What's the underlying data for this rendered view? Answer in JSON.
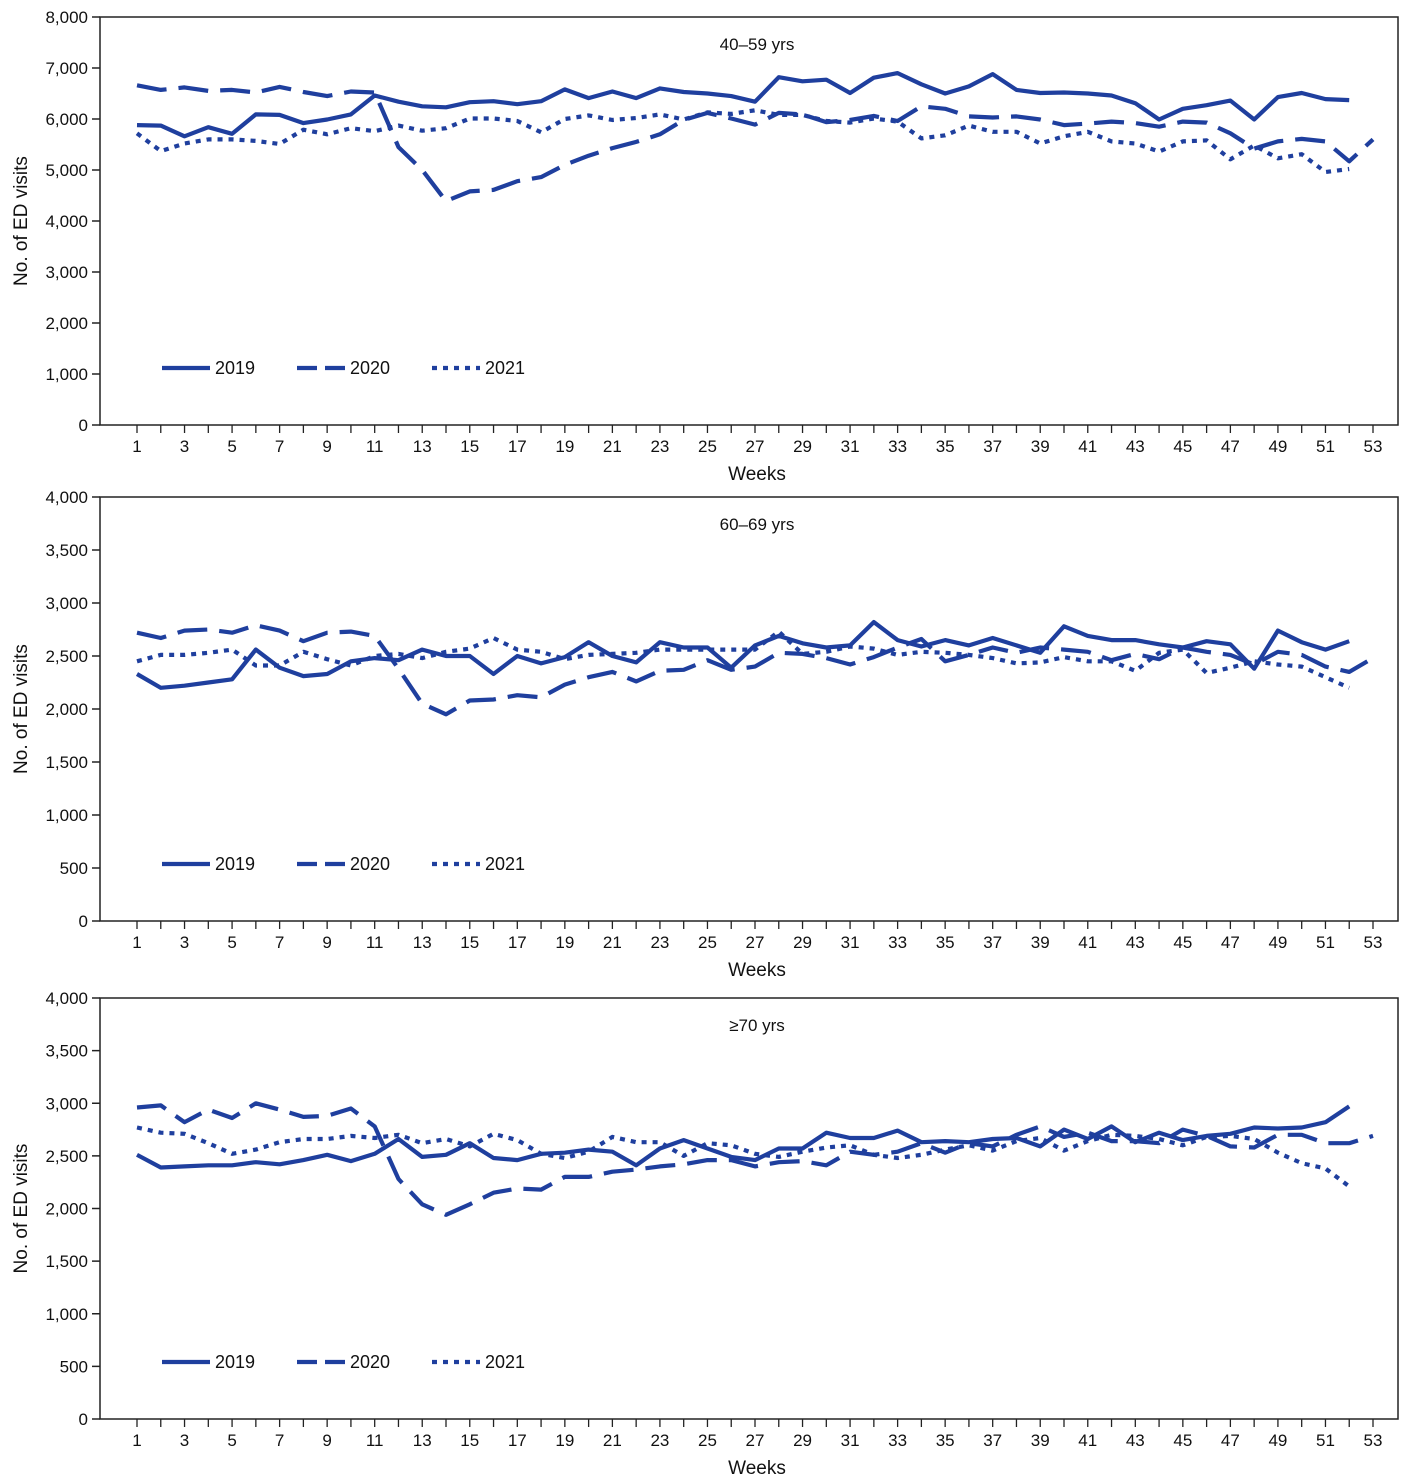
{
  "colors": {
    "line": "#1f3f9e",
    "axis": "#222222"
  },
  "chart_data": [
    {
      "type": "line",
      "title": "40–59 yrs",
      "xlabel": "Weeks",
      "ylabel": "No. of ED visits",
      "xlim": [
        1,
        53
      ],
      "ylim": [
        0,
        8000
      ],
      "x_ticks": [
        1,
        3,
        5,
        7,
        9,
        11,
        13,
        15,
        17,
        19,
        21,
        23,
        25,
        27,
        29,
        31,
        33,
        35,
        37,
        39,
        41,
        43,
        45,
        47,
        49,
        51,
        53
      ],
      "y_ticks": [
        0,
        1000,
        2000,
        3000,
        4000,
        5000,
        6000,
        7000,
        8000
      ],
      "y_tick_labels": [
        "0",
        "1,000",
        "2,000",
        "3,000",
        "4,000",
        "5,000",
        "6,000",
        "7,000",
        "8,000"
      ],
      "grid": false,
      "legend": "bottom-left",
      "series": [
        {
          "name": "2019",
          "style": "solid",
          "values": [
            5880,
            5870,
            5660,
            5840,
            5710,
            6090,
            6080,
            5920,
            5990,
            6090,
            6460,
            6340,
            6250,
            6230,
            6330,
            6350,
            6290,
            6350,
            6580,
            6410,
            6540,
            6410,
            6600,
            6530,
            6500,
            6450,
            6340,
            6820,
            6740,
            6770,
            6510,
            6810,
            6900,
            6680,
            6500,
            6640,
            6880,
            6570,
            6510,
            6520,
            6500,
            6460,
            6310,
            5990,
            6200,
            6270,
            6360,
            5990,
            6430,
            6510,
            6390,
            6370
          ]
        },
        {
          "name": "2020",
          "style": "dashed",
          "values": [
            6660,
            6570,
            6620,
            6550,
            6570,
            6520,
            6630,
            6530,
            6450,
            6540,
            6520,
            5450,
            5000,
            4390,
            4580,
            4610,
            4780,
            4860,
            5100,
            5280,
            5430,
            5550,
            5700,
            5980,
            6120,
            6010,
            5890,
            6120,
            6090,
            5940,
            5980,
            6060,
            5960,
            6250,
            6200,
            6050,
            6030,
            6050,
            5990,
            5880,
            5910,
            5950,
            5920,
            5850,
            5950,
            5930,
            5720,
            5420,
            5560,
            5610,
            5560,
            5170,
            5600
          ]
        },
        {
          "name": "2021",
          "style": "dotted",
          "values": [
            5720,
            5370,
            5520,
            5600,
            5600,
            5570,
            5510,
            5790,
            5700,
            5820,
            5760,
            5870,
            5770,
            5820,
            6010,
            6010,
            5960,
            5740,
            6000,
            6070,
            5980,
            6020,
            6090,
            5990,
            6130,
            6100,
            6170,
            6080,
            6080,
            5960,
            5930,
            6010,
            5950,
            5620,
            5680,
            5870,
            5750,
            5750,
            5520,
            5660,
            5750,
            5560,
            5520,
            5360,
            5560,
            5580,
            5210,
            5480,
            5230,
            5310,
            4960,
            5020
          ]
        }
      ]
    },
    {
      "type": "line",
      "title": "60–69 yrs",
      "xlabel": "Weeks",
      "ylabel": "No. of ED visits",
      "xlim": [
        1,
        53
      ],
      "ylim": [
        0,
        4000
      ],
      "x_ticks": [
        1,
        3,
        5,
        7,
        9,
        11,
        13,
        15,
        17,
        19,
        21,
        23,
        25,
        27,
        29,
        31,
        33,
        35,
        37,
        39,
        41,
        43,
        45,
        47,
        49,
        51,
        53
      ],
      "y_ticks": [
        0,
        500,
        1000,
        1500,
        2000,
        2500,
        3000,
        3500,
        4000
      ],
      "y_tick_labels": [
        "0",
        "500",
        "1,000",
        "1,500",
        "2,000",
        "2,500",
        "3,000",
        "3,500",
        "4,000"
      ],
      "grid": false,
      "legend": "bottom-left",
      "series": [
        {
          "name": "2019",
          "style": "solid",
          "values": [
            2330,
            2200,
            2220,
            2250,
            2280,
            2560,
            2390,
            2310,
            2330,
            2450,
            2480,
            2460,
            2560,
            2500,
            2500,
            2330,
            2500,
            2430,
            2490,
            2630,
            2500,
            2440,
            2630,
            2580,
            2580,
            2390,
            2600,
            2690,
            2620,
            2580,
            2600,
            2820,
            2650,
            2590,
            2650,
            2600,
            2670,
            2600,
            2530,
            2780,
            2690,
            2650,
            2650,
            2610,
            2580,
            2640,
            2610,
            2380,
            2740,
            2630,
            2560,
            2640
          ]
        },
        {
          "name": "2020",
          "style": "dashed",
          "values": [
            2720,
            2670,
            2740,
            2750,
            2720,
            2790,
            2740,
            2640,
            2720,
            2730,
            2690,
            2380,
            2050,
            1950,
            2080,
            2090,
            2130,
            2110,
            2230,
            2300,
            2350,
            2260,
            2360,
            2370,
            2460,
            2370,
            2400,
            2530,
            2520,
            2480,
            2420,
            2490,
            2580,
            2660,
            2450,
            2510,
            2580,
            2530,
            2580,
            2560,
            2540,
            2460,
            2520,
            2470,
            2580,
            2540,
            2510,
            2420,
            2540,
            2510,
            2400,
            2350,
            2480
          ]
        },
        {
          "name": "2021",
          "style": "dotted",
          "values": [
            2450,
            2510,
            2510,
            2530,
            2560,
            2410,
            2410,
            2540,
            2470,
            2410,
            2500,
            2520,
            2480,
            2540,
            2570,
            2670,
            2560,
            2540,
            2470,
            2510,
            2520,
            2530,
            2560,
            2560,
            2560,
            2560,
            2560,
            2730,
            2520,
            2540,
            2590,
            2570,
            2510,
            2540,
            2530,
            2510,
            2480,
            2430,
            2440,
            2490,
            2450,
            2450,
            2360,
            2530,
            2560,
            2340,
            2390,
            2450,
            2420,
            2400,
            2300,
            2200
          ]
        }
      ]
    },
    {
      "type": "line",
      "title": "≥70 yrs",
      "xlabel": "Weeks",
      "ylabel": "No. of ED visits",
      "xlim": [
        1,
        53
      ],
      "ylim": [
        0,
        4000
      ],
      "x_ticks": [
        1,
        3,
        5,
        7,
        9,
        11,
        13,
        15,
        17,
        19,
        21,
        23,
        25,
        27,
        29,
        31,
        33,
        35,
        37,
        39,
        41,
        43,
        45,
        47,
        49,
        51,
        53
      ],
      "y_ticks": [
        0,
        500,
        1000,
        1500,
        2000,
        2500,
        3000,
        3500,
        4000
      ],
      "y_tick_labels": [
        "0",
        "500",
        "1,000",
        "1,500",
        "2,000",
        "2,500",
        "3,000",
        "3,500",
        "4,000"
      ],
      "grid": false,
      "legend": "bottom-left",
      "series": [
        {
          "name": "2019",
          "style": "solid",
          "values": [
            2510,
            2390,
            2400,
            2410,
            2410,
            2440,
            2420,
            2460,
            2510,
            2450,
            2520,
            2660,
            2490,
            2510,
            2620,
            2480,
            2460,
            2520,
            2530,
            2560,
            2540,
            2410,
            2570,
            2650,
            2570,
            2490,
            2460,
            2570,
            2570,
            2720,
            2670,
            2670,
            2740,
            2630,
            2640,
            2630,
            2660,
            2670,
            2590,
            2750,
            2660,
            2780,
            2630,
            2720,
            2650,
            2690,
            2710,
            2770,
            2760,
            2770,
            2820,
            2970
          ]
        },
        {
          "name": "2020",
          "style": "dashed",
          "values": [
            2960,
            2980,
            2820,
            2940,
            2860,
            3000,
            2940,
            2870,
            2880,
            2950,
            2780,
            2280,
            2040,
            1940,
            2040,
            2150,
            2190,
            2180,
            2300,
            2300,
            2350,
            2370,
            2400,
            2420,
            2460,
            2460,
            2400,
            2440,
            2450,
            2410,
            2540,
            2510,
            2540,
            2620,
            2530,
            2620,
            2590,
            2700,
            2780,
            2680,
            2720,
            2640,
            2640,
            2620,
            2750,
            2690,
            2590,
            2580,
            2700,
            2700,
            2620,
            2620,
            2690
          ]
        },
        {
          "name": "2021",
          "style": "dotted",
          "values": [
            2770,
            2720,
            2710,
            2620,
            2520,
            2560,
            2630,
            2660,
            2660,
            2690,
            2670,
            2700,
            2620,
            2660,
            2590,
            2710,
            2650,
            2520,
            2480,
            2540,
            2680,
            2630,
            2630,
            2500,
            2620,
            2600,
            2520,
            2490,
            2540,
            2580,
            2600,
            2510,
            2480,
            2510,
            2560,
            2600,
            2550,
            2640,
            2670,
            2550,
            2640,
            2700,
            2690,
            2660,
            2600,
            2680,
            2690,
            2660,
            2530,
            2430,
            2380,
            2210
          ]
        }
      ]
    }
  ]
}
